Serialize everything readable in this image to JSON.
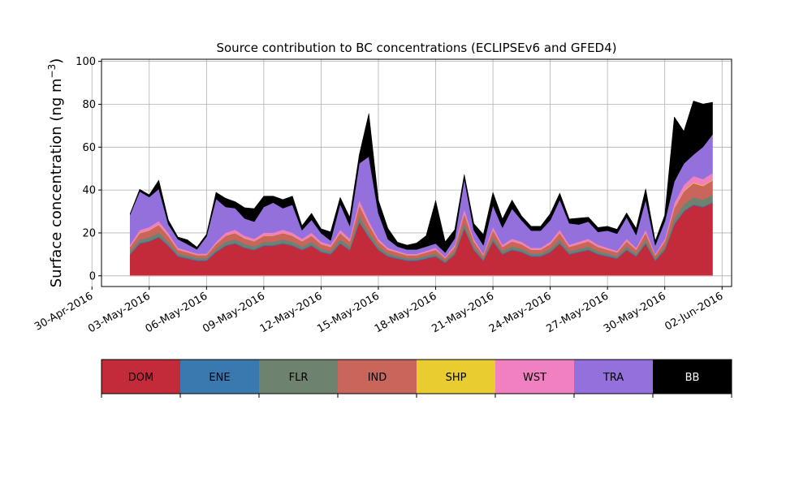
{
  "chart_data": {
    "type": "area",
    "stacked": true,
    "title": "Source contribution to BC concentrations (ECLIPSEv6 and GFED4)",
    "ylabel_text": "Surface concentration (ng m",
    "ylabel_sup": "−3",
    "ylabel_close": ")",
    "ylim": [
      -5,
      101
    ],
    "yticks": [
      0,
      20,
      40,
      60,
      80,
      100
    ],
    "xlim": [
      "2016-04-30T12:00",
      "2016-06-02T12:00"
    ],
    "x_tick_dates": [
      "2016-04-30",
      "2016-05-03",
      "2016-05-06",
      "2016-05-09",
      "2016-05-12",
      "2016-05-15",
      "2016-05-18",
      "2016-05-21",
      "2016-05-24",
      "2016-05-27",
      "2016-05-30",
      "2016-06-02"
    ],
    "x_tick_labels": [
      "30-Apr-2016",
      "03-May-2016",
      "06-May-2016",
      "09-May-2016",
      "12-May-2016",
      "15-May-2016",
      "18-May-2016",
      "21-May-2016",
      "24-May-2016",
      "27-May-2016",
      "30-May-2016",
      "02-Jun-2016"
    ],
    "grid": true,
    "x": [
      "2016-05-02T00:00",
      "2016-05-02T12:00",
      "2016-05-03T00:00",
      "2016-05-03T12:00",
      "2016-05-04T00:00",
      "2016-05-04T12:00",
      "2016-05-05T00:00",
      "2016-05-05T12:00",
      "2016-05-06T00:00",
      "2016-05-06T12:00",
      "2016-05-07T00:00",
      "2016-05-07T12:00",
      "2016-05-08T00:00",
      "2016-05-08T12:00",
      "2016-05-09T00:00",
      "2016-05-09T12:00",
      "2016-05-10T00:00",
      "2016-05-10T12:00",
      "2016-05-11T00:00",
      "2016-05-11T12:00",
      "2016-05-12T00:00",
      "2016-05-12T12:00",
      "2016-05-13T00:00",
      "2016-05-13T12:00",
      "2016-05-14T00:00",
      "2016-05-14T12:00",
      "2016-05-15T00:00",
      "2016-05-15T12:00",
      "2016-05-16T00:00",
      "2016-05-16T12:00",
      "2016-05-17T00:00",
      "2016-05-17T12:00",
      "2016-05-18T00:00",
      "2016-05-18T12:00",
      "2016-05-19T00:00",
      "2016-05-19T12:00",
      "2016-05-20T00:00",
      "2016-05-20T12:00",
      "2016-05-21T00:00",
      "2016-05-21T12:00",
      "2016-05-22T00:00",
      "2016-05-22T12:00",
      "2016-05-23T00:00",
      "2016-05-23T12:00",
      "2016-05-24T00:00",
      "2016-05-24T12:00",
      "2016-05-25T00:00",
      "2016-05-25T12:00",
      "2016-05-26T00:00",
      "2016-05-26T12:00",
      "2016-05-27T00:00",
      "2016-05-27T12:00",
      "2016-05-28T00:00",
      "2016-05-28T12:00",
      "2016-05-29T00:00",
      "2016-05-29T12:00",
      "2016-05-30T00:00",
      "2016-05-30T12:00",
      "2016-05-31T00:00",
      "2016-05-31T12:00",
      "2016-06-01T00:00",
      "2016-06-01T12:00"
    ],
    "series": [
      {
        "name": "DOM",
        "color": "#c42b3a",
        "values": [
          10,
          15,
          16,
          18,
          14,
          9,
          8,
          7,
          7,
          11,
          14,
          15,
          13,
          12,
          14,
          14,
          15,
          14,
          12,
          14,
          11,
          10,
          15,
          12,
          25,
          18,
          12,
          9,
          8,
          7,
          7,
          8,
          9,
          6,
          10,
          22,
          12,
          7,
          16,
          10,
          12,
          11,
          9,
          9,
          11,
          15,
          10,
          11,
          12,
          10,
          9,
          8,
          12,
          9,
          15,
          7,
          12,
          24,
          30,
          33,
          32,
          34
        ]
      },
      {
        "name": "ENE",
        "color": "#3a78b0",
        "values": [
          0.4,
          0.4,
          0.4,
          0.4,
          0.4,
          0.4,
          0.4,
          0.4,
          0.4,
          0.4,
          0.4,
          0.4,
          0.4,
          0.4,
          0.4,
          0.4,
          0.4,
          0.4,
          0.4,
          0.4,
          0.4,
          0.4,
          0.4,
          0.4,
          0.4,
          0.4,
          0.4,
          0.4,
          0.4,
          0.4,
          0.4,
          0.4,
          0.4,
          0.4,
          0.4,
          0.4,
          0.4,
          0.4,
          0.4,
          0.4,
          0.4,
          0.4,
          0.4,
          0.4,
          0.4,
          0.4,
          0.4,
          0.4,
          0.4,
          0.4,
          0.4,
          0.4,
          0.4,
          0.4,
          0.4,
          0.4,
          0.4,
          0.4,
          0.4,
          0.4,
          0.4,
          0.4
        ]
      },
      {
        "name": "FLR",
        "color": "#6e8270",
        "values": [
          1.2,
          1.5,
          1.6,
          1.8,
          1.4,
          1,
          1,
          0.9,
          0.9,
          1.2,
          1.5,
          1.6,
          1.4,
          1.3,
          1.5,
          1.5,
          1.6,
          1.5,
          1.3,
          1.5,
          1.2,
          1.1,
          1.6,
          1.3,
          2.5,
          1.9,
          1.3,
          1,
          0.9,
          0.8,
          0.8,
          0.9,
          1,
          0.7,
          1.1,
          2.2,
          1.3,
          0.8,
          1.7,
          1.1,
          1.3,
          1.2,
          1,
          1,
          1.2,
          1.6,
          1.1,
          1.2,
          1.3,
          1.1,
          1,
          0.9,
          1.3,
          1,
          1.6,
          0.8,
          1.3,
          2.4,
          3,
          3.2,
          3.1,
          3.3
        ]
      },
      {
        "name": "IND",
        "color": "#c9655a",
        "values": [
          2,
          3,
          3.2,
          3.6,
          2.8,
          1.8,
          1.6,
          1.4,
          1.4,
          2.2,
          2.8,
          3,
          2.6,
          2.4,
          2.8,
          2.8,
          3,
          2.8,
          2.4,
          2.8,
          2.2,
          2,
          3,
          2.4,
          5,
          3.6,
          2.4,
          1.8,
          1.6,
          1.4,
          1.4,
          1.6,
          1.8,
          1.2,
          2,
          4.4,
          2.4,
          1.4,
          3.2,
          2,
          2.4,
          2.2,
          1.8,
          1.8,
          2.2,
          3,
          2,
          2.2,
          2.4,
          2,
          1.8,
          1.6,
          2.4,
          1.8,
          3,
          1.4,
          2.4,
          4.8,
          6,
          6.6,
          6.4,
          6.8
        ]
      },
      {
        "name": "SHP",
        "color": "#e8cc30",
        "values": [
          0.1,
          0.15,
          0.16,
          0.18,
          0.14,
          0.1,
          0.08,
          0.07,
          0.07,
          0.11,
          0.14,
          0.15,
          0.13,
          0.12,
          0.14,
          0.14,
          0.15,
          0.14,
          0.12,
          0.14,
          0.11,
          0.1,
          0.15,
          0.12,
          0.25,
          0.18,
          0.12,
          0.09,
          0.08,
          0.07,
          0.07,
          0.08,
          0.09,
          0.06,
          0.1,
          0.22,
          0.12,
          0.07,
          0.16,
          0.1,
          0.12,
          0.11,
          0.09,
          0.09,
          0.11,
          0.15,
          0.1,
          0.11,
          0.12,
          0.1,
          0.09,
          0.08,
          0.12,
          0.09,
          0.15,
          0.07,
          0.12,
          0.24,
          0.3,
          0.33,
          0.32,
          0.34
        ]
      },
      {
        "name": "WST",
        "color": "#f080c0",
        "values": [
          0.9,
          1.3,
          1.4,
          1.6,
          1.3,
          0.8,
          0.7,
          0.6,
          0.6,
          1,
          1.3,
          1.4,
          1.2,
          1.1,
          1.3,
          1.3,
          1.4,
          1.3,
          1.1,
          1.3,
          1,
          0.9,
          1.4,
          1.1,
          2.3,
          1.6,
          1.1,
          0.8,
          0.7,
          0.6,
          0.6,
          0.7,
          0.8,
          0.5,
          0.9,
          2,
          1.1,
          0.6,
          1.4,
          0.9,
          1.1,
          1,
          0.8,
          0.8,
          1,
          1.4,
          0.9,
          1,
          1.1,
          0.9,
          0.8,
          0.7,
          1.1,
          0.8,
          1.4,
          0.6,
          1.1,
          2.2,
          2.7,
          3,
          2.9,
          3.1
        ]
      },
      {
        "name": "TRA",
        "color": "#9370db",
        "values": [
          14,
          18,
          14,
          15,
          4,
          4,
          3,
          2,
          8,
          20,
          12,
          10,
          8,
          8,
          12,
          14,
          10,
          13,
          4,
          6,
          4,
          2,
          12,
          6,
          17,
          30,
          12,
          4,
          2,
          2,
          2,
          2,
          2,
          2,
          3,
          14,
          4,
          4,
          10,
          8,
          14,
          10,
          8,
          8,
          10,
          14,
          10,
          8,
          8,
          6,
          8,
          8,
          10,
          6,
          14,
          4,
          8,
          10,
          10,
          10,
          15,
          18
        ]
      },
      {
        "name": "BB",
        "color": "#000000",
        "values": [
          0.4,
          1,
          1,
          4,
          2,
          1,
          2,
          1,
          1,
          3,
          4,
          3,
          5,
          6,
          5,
          3,
          4,
          4,
          2,
          3,
          2,
          4,
          3,
          4,
          4,
          20,
          6,
          5,
          2,
          2,
          3,
          5,
          20,
          5,
          4,
          2,
          3,
          5,
          6,
          4,
          4,
          2,
          2,
          2,
          3,
          3,
          2,
          3,
          2,
          2,
          2,
          2,
          2,
          3,
          5,
          2,
          3,
          30,
          15,
          25,
          20,
          15
        ]
      }
    ],
    "legend_labels": [
      "DOM",
      "ENE",
      "FLR",
      "IND",
      "SHP",
      "WST",
      "TRA",
      "BB"
    ],
    "legend_placement": "bottom colorbar"
  }
}
